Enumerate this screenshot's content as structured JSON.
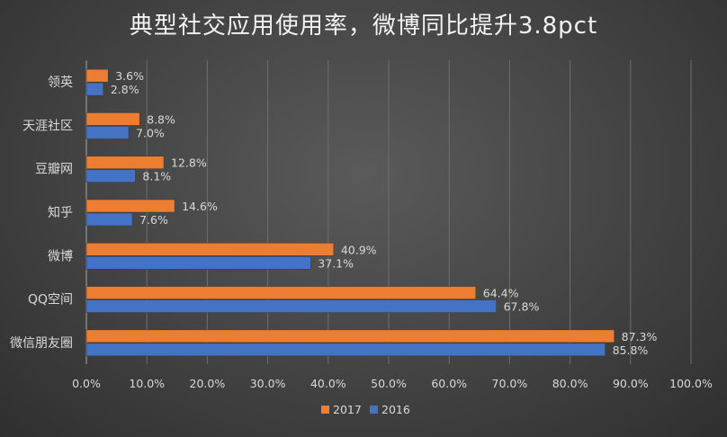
{
  "chart_data": {
    "type": "bar",
    "orientation": "horizontal",
    "title": "典型社交应用使用率，微博同比提升3.8pct",
    "categories": [
      "领英",
      "天涯社区",
      "豆瓣网",
      "知乎",
      "微博",
      "QQ空间",
      "微信朋友圈"
    ],
    "series": [
      {
        "name": "2017",
        "color": "#ED7D31",
        "values": [
          3.6,
          8.8,
          12.8,
          14.6,
          40.9,
          64.4,
          87.3
        ]
      },
      {
        "name": "2016",
        "color": "#4472C4",
        "values": [
          2.8,
          7.0,
          8.1,
          7.6,
          37.1,
          67.8,
          85.8
        ]
      }
    ],
    "xlim": [
      0,
      100
    ],
    "x_ticks": [
      0,
      10,
      20,
      30,
      40,
      50,
      60,
      70,
      80,
      90,
      100
    ],
    "x_tick_labels": [
      "0.0%",
      "10.0%",
      "20.0%",
      "30.0%",
      "40.0%",
      "50.0%",
      "60.0%",
      "70.0%",
      "80.0%",
      "90.0%",
      "100.0%"
    ],
    "data_labels": [
      [
        "3.6%",
        "8.8%",
        "12.8%",
        "14.6%",
        "40.9%",
        "64.4%",
        "87.3%"
      ],
      [
        "2.8%",
        "7.0%",
        "8.1%",
        "7.6%",
        "37.1%",
        "67.8%",
        "85.8%"
      ]
    ],
    "grid": true,
    "legend_position": "bottom",
    "background": "#474747",
    "gridline_color": "#6e6e6e"
  }
}
